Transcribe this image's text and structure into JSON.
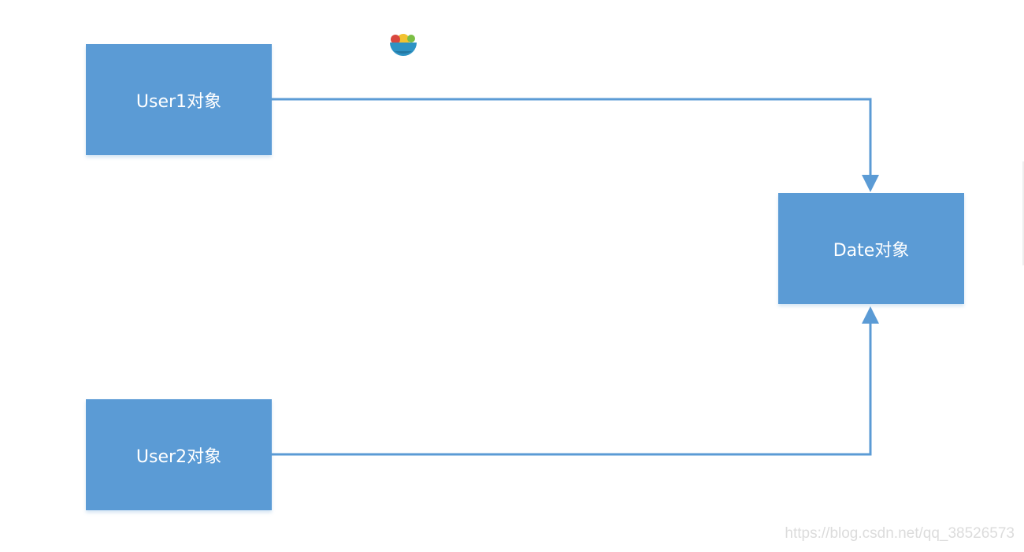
{
  "diagram": {
    "nodes": [
      {
        "id": "user1",
        "label": "User1对象"
      },
      {
        "id": "user2",
        "label": "User2对象"
      },
      {
        "id": "date",
        "label": "Date对象"
      }
    ],
    "edges": [
      {
        "from": "user1",
        "to": "date"
      },
      {
        "from": "user2",
        "to": "date"
      }
    ],
    "colors": {
      "node_fill": "#5b9bd5",
      "edge": "#5b9bd5",
      "text": "#ffffff"
    }
  },
  "logo": {
    "icon": "bowl-logo-icon"
  },
  "watermark": {
    "text": "https://blog.csdn.net/qq_38526573"
  }
}
